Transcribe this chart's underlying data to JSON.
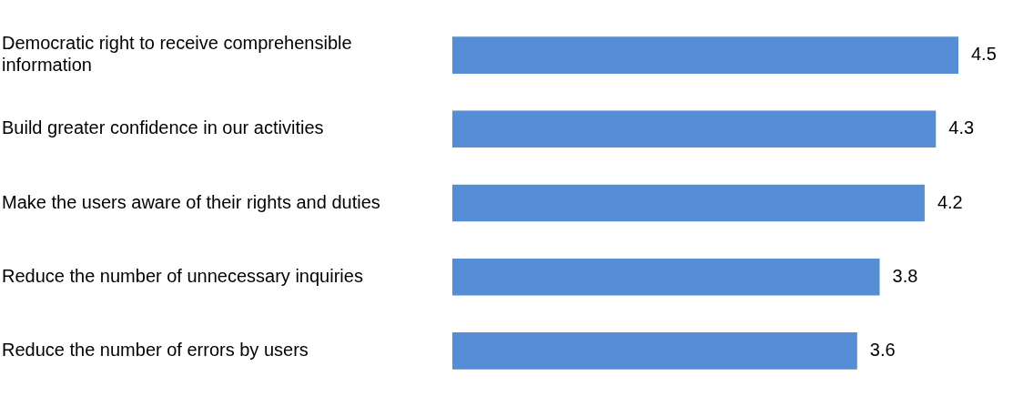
{
  "chart_data": {
    "type": "bar",
    "orientation": "horizontal",
    "categories": [
      "Democratic right to receive comprehensible information",
      "Build greater confidence in our activities",
      "Make the users aware of their rights and duties",
      "Reduce the number of unnecessary inquiries",
      "Reduce the number of errors by users"
    ],
    "values": [
      4.5,
      4.3,
      4.2,
      3.8,
      3.6
    ],
    "color": "#558ed5",
    "data_labels": true,
    "legend": false,
    "tick_labels": "y"
  }
}
